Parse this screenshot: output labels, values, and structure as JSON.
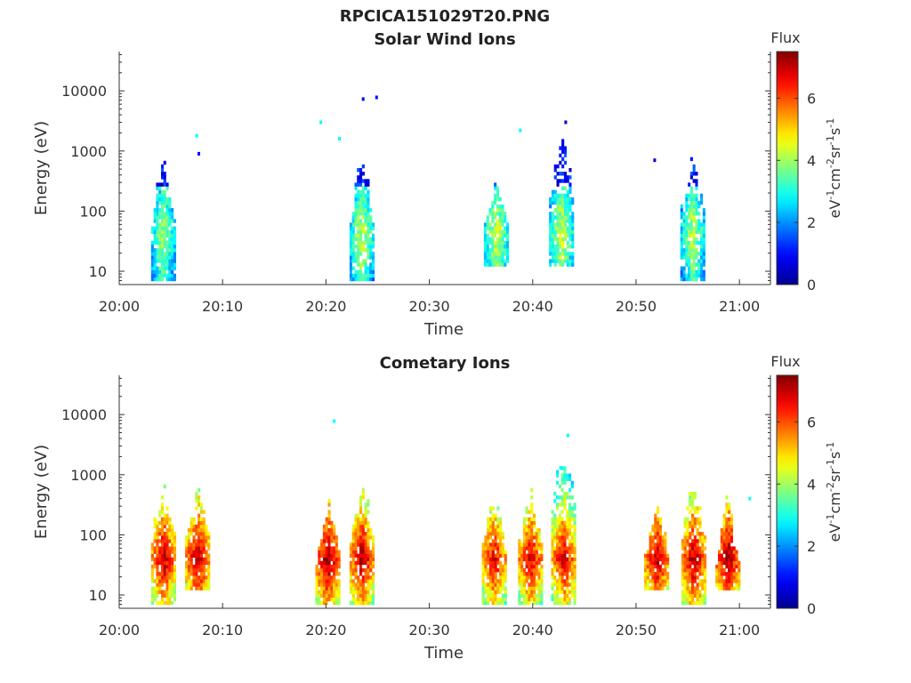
{
  "figure_title": "RPCICA151029T20.PNG",
  "colors": {
    "axis": "#333333",
    "colormap": [
      "#00008f",
      "#0000ff",
      "#0080ff",
      "#00ffff",
      "#80ff80",
      "#ffff00",
      "#ff8000",
      "#ff0000",
      "#800000"
    ]
  },
  "chart_data": [
    {
      "type": "heatmap",
      "title": "Solar Wind Ions",
      "xlabel": "Time",
      "ylabel": "Energy (eV)",
      "x_ticks": [
        "20:00",
        "20:10",
        "20:20",
        "20:30",
        "20:40",
        "20:50",
        "21:00"
      ],
      "x_range_minutes": [
        0,
        63
      ],
      "y_scale": "log",
      "y_ticks": [
        "10",
        "100",
        "1000",
        "10000"
      ],
      "y_range": [
        6,
        45000
      ],
      "colorbar": {
        "label": "Flux",
        "unit": "eV-1cm-2sr-1s-1",
        "ticks": [
          "0",
          "2",
          "4",
          "6"
        ],
        "range": [
          0,
          7.5
        ]
      },
      "bursts": [
        {
          "t": 4.3,
          "emin": 7,
          "emax": 1200,
          "peak": 4.2
        },
        {
          "t": 23.5,
          "emin": 7,
          "emax": 1200,
          "peak": 4.4
        },
        {
          "t": 36.5,
          "emin": 12,
          "emax": 700,
          "peak": 4.5
        },
        {
          "t": 42.8,
          "emin": 12,
          "emax": 3000,
          "peak": 4.5
        },
        {
          "t": 55.5,
          "emin": 7,
          "emax": 1200,
          "peak": 4.3
        }
      ],
      "isolated_points": [
        {
          "t": 7.5,
          "e": 1800,
          "v": 2.8
        },
        {
          "t": 7.7,
          "e": 900,
          "v": 1.0
        },
        {
          "t": 19.5,
          "e": 3000,
          "v": 2.8
        },
        {
          "t": 21.3,
          "e": 1600,
          "v": 2.8
        },
        {
          "t": 23.6,
          "e": 7300,
          "v": 1.0
        },
        {
          "t": 24.9,
          "e": 7800,
          "v": 1.0
        },
        {
          "t": 38.8,
          "e": 2200,
          "v": 2.8
        },
        {
          "t": 43.2,
          "e": 3000,
          "v": 0.5
        },
        {
          "t": 51.8,
          "e": 700,
          "v": 0.5
        }
      ]
    },
    {
      "type": "heatmap",
      "title": "Cometary Ions",
      "xlabel": "Time",
      "ylabel": "Energy (eV)",
      "x_ticks": [
        "20:00",
        "20:10",
        "20:20",
        "20:30",
        "20:40",
        "20:50",
        "21:00"
      ],
      "x_range_minutes": [
        0,
        63
      ],
      "y_scale": "log",
      "y_ticks": [
        "10",
        "100",
        "1000",
        "10000"
      ],
      "y_range": [
        6,
        45000
      ],
      "colorbar": {
        "label": "Flux",
        "unit": "eV-1cm-2sr-1s-1",
        "ticks": [
          "0",
          "2",
          "4",
          "6"
        ],
        "range": [
          0,
          7.5
        ]
      },
      "bursts": [
        {
          "t": 4.3,
          "emin": 7,
          "emax": 1300,
          "peak": 7.2
        },
        {
          "t": 7.6,
          "emin": 12,
          "emax": 1200,
          "peak": 7.3
        },
        {
          "t": 20.2,
          "emin": 7,
          "emax": 700,
          "peak": 7.4
        },
        {
          "t": 23.5,
          "emin": 7,
          "emax": 1300,
          "peak": 7.2
        },
        {
          "t": 36.3,
          "emin": 7,
          "emax": 800,
          "peak": 6.9
        },
        {
          "t": 39.8,
          "emin": 7,
          "emax": 900,
          "peak": 7.0
        },
        {
          "t": 43.0,
          "emin": 7,
          "emax": 4500,
          "peak": 7.0
        },
        {
          "t": 52.0,
          "emin": 12,
          "emax": 700,
          "peak": 7.2
        },
        {
          "t": 55.6,
          "emin": 7,
          "emax": 1300,
          "peak": 7.3
        },
        {
          "t": 58.9,
          "emin": 12,
          "emax": 600,
          "peak": 7.4
        }
      ],
      "isolated_points": [
        {
          "t": 20.8,
          "e": 7800,
          "v": 2.8
        },
        {
          "t": 43.4,
          "e": 4500,
          "v": 2.8
        },
        {
          "t": 42.7,
          "e": 1300,
          "v": 2.8
        },
        {
          "t": 61.0,
          "e": 400,
          "v": 3.0
        }
      ]
    }
  ]
}
